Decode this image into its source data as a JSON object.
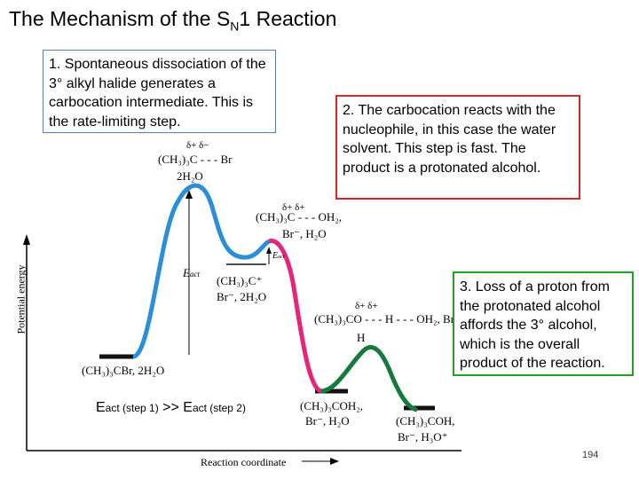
{
  "title": {
    "main": "The Mechanism of the S",
    "sub": "N",
    "tail": "1 Reaction"
  },
  "boxes": {
    "step1": "1. Spontaneous dissociation of the 3° alkyl halide generates a carbocation intermediate. This is the rate-limiting step.",
    "step2": "2. The carbocation reacts with the nucleophile, in this case the water solvent.  This step is fast. The product is a protonated alcohol.",
    "step3": "3. Loss of a proton from the protonated alcohol affords the 3° alcohol, which is the overall product of the reaction."
  },
  "diagram": {
    "y_axis_label": "Potential energy",
    "x_axis_label": "Reaction coordinate",
    "reactants": "(CH₃)₃CBr, 2H₂O",
    "ts1_line1": "δ+     δ−",
    "ts1_line2": "(CH₃)₃C - - - Br",
    "ts1_line3": "2H₂O",
    "intermediate1_line1": "(CH₃)₃C⁺",
    "intermediate1_line2": "Br⁻, 2H₂O",
    "ts2_line1": "δ+        δ+",
    "ts2_line2": "(CH₃)₃C - - - OH₂,",
    "ts2_line3": "Br⁻, H₂O",
    "ts3_line1": "δ+                  δ+",
    "ts3_line2": "(CH₃)₃CO - - - H - - - OH₂, Br⁻",
    "ts3_line3": "H",
    "intermediate2_line1": "(CH₃)₃COH₂,",
    "intermediate2_line2": "Br⁻, H₂O",
    "products_line1": "(CH₃)₃COH,",
    "products_line2": "Br⁻, H₃O⁺",
    "eact_label": "E",
    "eact_sub": "act",
    "eact2_label": "E",
    "eact2_sub": "act"
  },
  "comparison": {
    "e1": "E",
    "s1": "act (step 1)",
    "op": " >> ",
    "e2": "E",
    "s2": "act (step 2)"
  },
  "page_number": "194",
  "colors": {
    "step1": "#2a8fd6",
    "step2": "#e8247a",
    "step3": "#167a3e",
    "box1": "#5b7fb5",
    "box2": "#d62828",
    "box3": "#22a022"
  }
}
